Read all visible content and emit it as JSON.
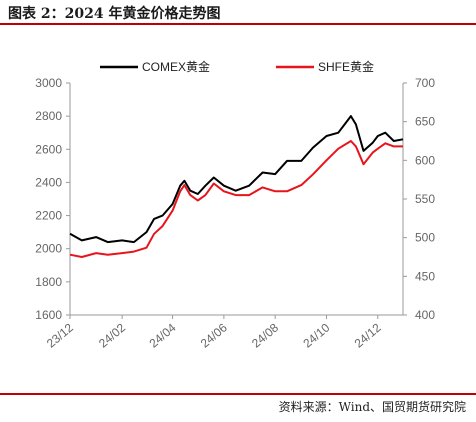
{
  "figure": {
    "title": "图表 2：2024 年黄金价格走势图",
    "source": "资料来源：Wind、国贸期货研究院",
    "accent": "#c00000"
  },
  "chart_data": {
    "type": "line",
    "title": "",
    "xlabel": "",
    "ylabel": "",
    "x_ticks": [
      "23/12",
      "24/02",
      "24/04",
      "24/06",
      "24/08",
      "24/10",
      "24/12"
    ],
    "x_range": [
      "2023-12-01",
      "2024-12-31"
    ],
    "y_left": {
      "ylim": [
        1600,
        3000
      ],
      "ticks": [
        1600,
        1800,
        2000,
        2200,
        2400,
        2600,
        2800,
        3000
      ]
    },
    "y_right": {
      "ylim": [
        400,
        700
      ],
      "ticks": [
        400,
        450,
        500,
        550,
        600,
        650,
        700
      ]
    },
    "grid": false,
    "legend": "top-center",
    "series": [
      {
        "name": "COMEX黄金",
        "axis": "left",
        "color": "#000000",
        "x": [
          "2023-12-01",
          "2023-12-15",
          "2024-01-01",
          "2024-01-15",
          "2024-02-01",
          "2024-02-15",
          "2024-03-01",
          "2024-03-10",
          "2024-03-20",
          "2024-04-01",
          "2024-04-10",
          "2024-04-15",
          "2024-04-22",
          "2024-05-01",
          "2024-05-10",
          "2024-05-20",
          "2024-06-01",
          "2024-06-15",
          "2024-07-01",
          "2024-07-17",
          "2024-08-01",
          "2024-08-15",
          "2024-09-01",
          "2024-09-15",
          "2024-10-01",
          "2024-10-15",
          "2024-10-30",
          "2024-11-05",
          "2024-11-14",
          "2024-11-25",
          "2024-12-01",
          "2024-12-10",
          "2024-12-20",
          "2024-12-31"
        ],
        "y": [
          2090,
          2050,
          2070,
          2040,
          2050,
          2040,
          2100,
          2180,
          2200,
          2270,
          2380,
          2410,
          2350,
          2330,
          2380,
          2430,
          2380,
          2350,
          2380,
          2460,
          2450,
          2530,
          2530,
          2610,
          2680,
          2700,
          2800,
          2750,
          2590,
          2640,
          2680,
          2700,
          2650,
          2660
        ]
      },
      {
        "name": "SHFE黄金",
        "axis": "right",
        "color": "#e8141b",
        "x": [
          "2023-12-01",
          "2023-12-15",
          "2024-01-01",
          "2024-01-15",
          "2024-02-01",
          "2024-02-15",
          "2024-03-01",
          "2024-03-10",
          "2024-03-20",
          "2024-04-01",
          "2024-04-10",
          "2024-04-15",
          "2024-04-22",
          "2024-05-01",
          "2024-05-10",
          "2024-05-20",
          "2024-06-01",
          "2024-06-15",
          "2024-07-01",
          "2024-07-17",
          "2024-08-01",
          "2024-08-15",
          "2024-09-01",
          "2024-09-15",
          "2024-10-01",
          "2024-10-15",
          "2024-10-30",
          "2024-11-05",
          "2024-11-14",
          "2024-11-25",
          "2024-12-01",
          "2024-12-10",
          "2024-12-20",
          "2024-12-31"
        ],
        "y": [
          478,
          475,
          480,
          478,
          480,
          482,
          487,
          505,
          515,
          535,
          560,
          568,
          555,
          548,
          555,
          570,
          560,
          555,
          555,
          565,
          560,
          560,
          568,
          582,
          600,
          615,
          625,
          618,
          595,
          610,
          615,
          622,
          618,
          618
        ]
      }
    ]
  }
}
